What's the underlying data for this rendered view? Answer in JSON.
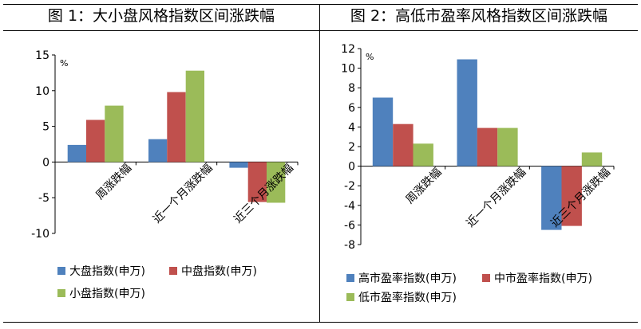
{
  "colors": {
    "blue": "#4f81bd",
    "red": "#c0504d",
    "green": "#9bbb59"
  },
  "chart_data": [
    {
      "type": "bar",
      "title": "图 1：大小盘风格指数区间涨跌幅",
      "unit": "%",
      "categories": [
        "周涨跌幅",
        "近一个月涨跌幅",
        "近三个月涨跌幅"
      ],
      "series": [
        {
          "name": "大盘指数(申万)",
          "values": [
            2.4,
            3.2,
            -0.8
          ]
        },
        {
          "name": "中盘指数(申万)",
          "values": [
            5.9,
            9.8,
            -5.6
          ]
        },
        {
          "name": "小盘指数(申万)",
          "values": [
            7.9,
            12.8,
            -5.7
          ]
        }
      ],
      "ylim": [
        -10,
        15
      ],
      "yticks": [
        15,
        10,
        5,
        0,
        -5,
        -10
      ],
      "grid": false,
      "legend": "bottom"
    },
    {
      "type": "bar",
      "title": "图 2：高低市盈率风格指数区间涨跌幅",
      "unit": "%",
      "categories": [
        "周涨跌幅",
        "近一个月涨跌幅",
        "近三个月涨跌幅"
      ],
      "series": [
        {
          "name": "高市盈率指数(申万)",
          "values": [
            7.0,
            10.9,
            -6.5
          ]
        },
        {
          "name": "中市盈率指数(申万)",
          "values": [
            4.3,
            3.9,
            -6.1
          ]
        },
        {
          "name": "低市盈率指数(申万)",
          "values": [
            2.3,
            3.9,
            1.4
          ]
        }
      ],
      "ylim": [
        -8,
        12
      ],
      "yticks": [
        12,
        10,
        8,
        6,
        4,
        2,
        0,
        -2,
        -4,
        -6,
        -8
      ],
      "grid": false,
      "legend": "bottom"
    }
  ]
}
